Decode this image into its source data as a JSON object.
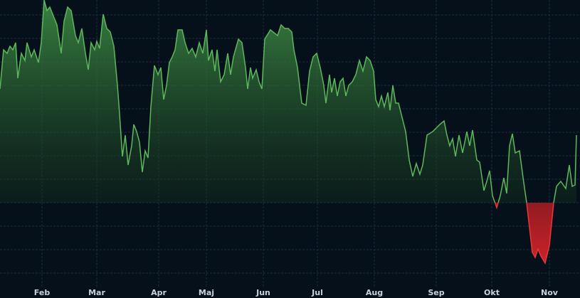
{
  "chart_data": {
    "type": "area",
    "x": [
      0,
      5,
      10,
      14,
      18,
      22,
      25,
      30,
      35,
      38,
      44,
      48,
      54,
      58,
      62,
      66,
      70,
      74,
      80,
      86,
      90,
      95,
      100,
      106,
      110,
      115,
      120,
      124,
      128,
      133,
      136,
      140,
      145,
      150,
      155,
      160,
      165,
      168,
      172,
      176,
      180,
      185,
      188,
      192,
      196,
      200,
      204,
      208,
      212,
      217,
      222,
      226,
      230,
      234,
      238,
      242,
      246,
      250,
      256,
      260,
      265,
      270,
      275,
      280,
      285,
      290,
      293,
      298,
      302,
      305,
      310,
      315,
      320,
      324,
      328,
      335,
      340,
      345,
      348,
      352,
      355,
      360,
      364,
      368,
      372,
      380,
      390,
      395,
      400,
      405,
      410,
      413,
      418,
      424,
      430,
      435,
      440,
      445,
      450,
      455,
      458,
      463,
      466,
      470,
      474,
      478,
      482,
      486,
      490,
      495,
      500,
      505,
      510,
      515,
      520,
      525,
      528,
      532,
      536,
      540,
      545,
      548,
      552,
      556,
      560,
      565,
      570,
      575,
      580,
      585,
      590,
      594,
      600,
      608,
      618,
      624,
      628,
      632,
      636,
      640,
      645,
      650,
      656,
      660,
      664,
      670,
      674,
      680,
      684,
      688,
      692,
      698,
      703,
      708,
      712,
      716,
      720,
      724,
      730,
      735,
      740,
      744,
      748,
      752,
      756,
      760,
      766,
      772,
      778,
      782,
      788,
      795,
      800,
      804,
      808,
      810
    ],
    "series": [
      {
        "color": "#5cb85c",
        "negative_color": "#e53935",
        "values": [
          160,
          215,
          210,
          220,
          215,
          225,
          175,
          210,
          200,
          225,
          205,
          215,
          197,
          225,
          285,
          270,
          275,
          265,
          250,
          210,
          255,
          275,
          270,
          235,
          225,
          245,
          210,
          187,
          225,
          215,
          227,
          217,
          265,
          245,
          240,
          220,
          165,
          125,
          65,
          95,
          53,
          80,
          110,
          100,
          85,
          43,
          73,
          63,
          135,
          193,
          180,
          190,
          145,
          165,
          197,
          205,
          215,
          243,
          243,
          225,
          210,
          217,
          205,
          225,
          210,
          243,
          200,
          215,
          185,
          215,
          170,
          180,
          210,
          180,
          205,
          230,
          225,
          190,
          160,
          190,
          175,
          187,
          170,
          160,
          230,
          243,
          235,
          250,
          245,
          245,
          240,
          215,
          190,
          140,
          137,
          185,
          205,
          210,
          190,
          165,
          140,
          180,
          155,
          175,
          150,
          170,
          175,
          150,
          165,
          170,
          180,
          200,
          185,
          205,
          200,
          185,
          145,
          135,
          150,
          135,
          155,
          130,
          165,
          140,
          140,
          120,
          100,
          60,
          37,
          55,
          40,
          53,
          95,
          100,
          110,
          115,
          95,
          80,
          90,
          65,
          95,
          70,
          100,
          80,
          102,
          60,
          57,
          17,
          30,
          45,
          10,
          -7,
          10,
          35,
          13,
          80,
          97,
          70,
          73,
          35,
          0,
          -35,
          -70,
          -77,
          -65,
          -75,
          -85,
          -60,
          0,
          23,
          30,
          20,
          53,
          23,
          25,
          95
        ]
      }
    ],
    "xlim": [
      0,
      815
    ],
    "xticks": [
      {
        "value": 59,
        "label": "Feb"
      },
      {
        "value": 136,
        "label": "Mar"
      },
      {
        "value": 223,
        "label": "Apr"
      },
      {
        "value": 290,
        "label": "Maj"
      },
      {
        "value": 370,
        "label": "Jun"
      },
      {
        "value": 446,
        "label": "Jul"
      },
      {
        "value": 526,
        "label": "Aug"
      },
      {
        "value": 613,
        "label": "Sep"
      },
      {
        "value": 691,
        "label": "Okt"
      },
      {
        "value": 772,
        "label": "Nov"
      }
    ],
    "ylim": [
      -115,
      285
    ],
    "yticks": [
      -99,
      -66,
      -33,
      0,
      33,
      66,
      99,
      132,
      165,
      198,
      231,
      264
    ],
    "baseline": 0,
    "grid": true
  }
}
